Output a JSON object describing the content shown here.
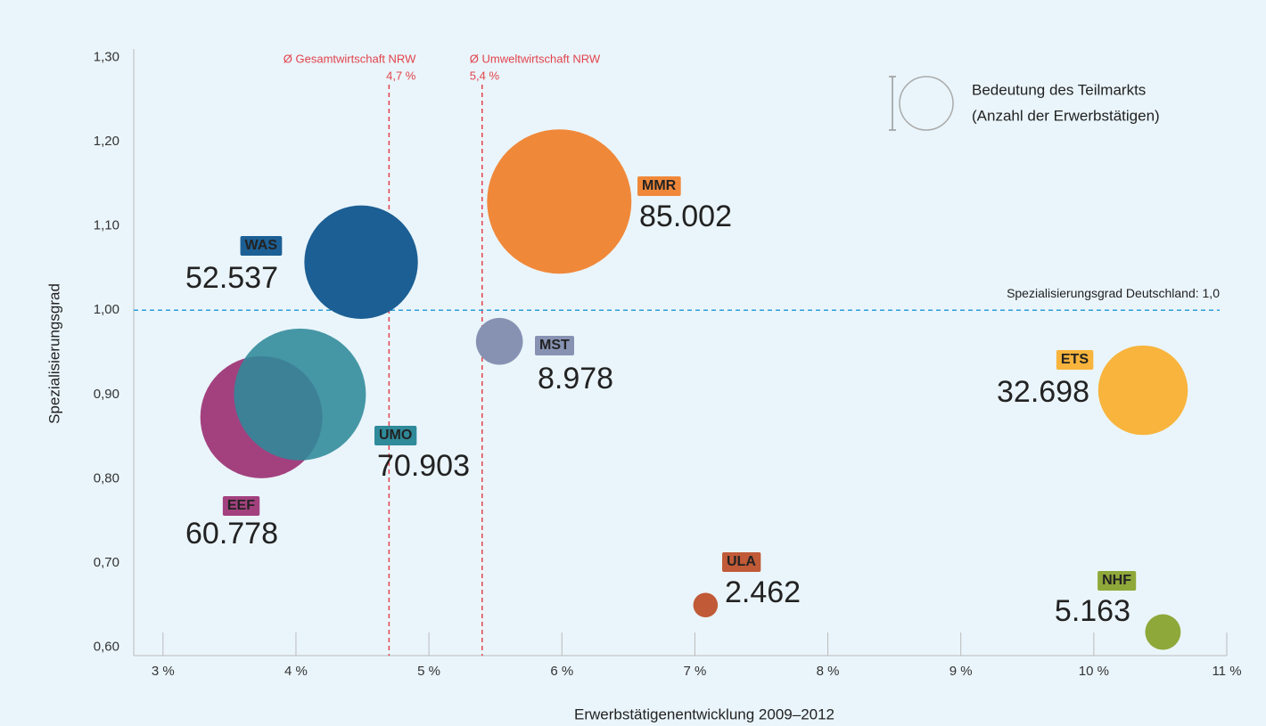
{
  "chart_data": {
    "type": "bubble",
    "x_label": "Erwerbstätigenentwicklung 2009–2012",
    "y_label": "Spezialisierungsgrad",
    "legend_title": [
      "Bedeutung des Teilmarkts",
      "(Anzahl der Erwerbstätigen)"
    ],
    "xlim": [
      2.78,
      11
    ],
    "ylim": [
      0.59,
      1.31
    ],
    "xticks": [
      {
        "value": 3,
        "label": "3 %"
      },
      {
        "value": 4,
        "label": "4 %"
      },
      {
        "value": 5,
        "label": "5 %"
      },
      {
        "value": 6,
        "label": "6 %"
      },
      {
        "value": 7,
        "label": "7 %"
      },
      {
        "value": 8,
        "label": "8 %"
      },
      {
        "value": 9,
        "label": "9 %"
      },
      {
        "value": 10,
        "label": "10 %"
      },
      {
        "value": 11,
        "label": "11 %"
      }
    ],
    "yticks": [
      {
        "value": 0.6,
        "label": "0,60"
      },
      {
        "value": 0.7,
        "label": "0,70"
      },
      {
        "value": 0.8,
        "label": "0,80"
      },
      {
        "value": 0.9,
        "label": "0,90"
      },
      {
        "value": 1.0,
        "label": "1,00"
      },
      {
        "value": 1.1,
        "label": "1,10"
      },
      {
        "value": 1.2,
        "label": "1,20"
      },
      {
        "value": 1.3,
        "label": "1,30"
      }
    ],
    "reference_lines": [
      {
        "axis": "x",
        "value": 4.7,
        "name": "Ø Gesamtwirtschaft NRW",
        "label": "4,7 %",
        "color": "#e2434b"
      },
      {
        "axis": "x",
        "value": 5.4,
        "name": "Ø Umweltwirtschaft NRW",
        "label": "5,4 %",
        "color": "#e2434b"
      },
      {
        "axis": "y",
        "value": 1.0,
        "label": "Spezialisierungsgrad Deutschland: 1,0",
        "color": "#2a9fd8"
      }
    ],
    "series": [
      {
        "name": "MMR",
        "color": "#f0883a",
        "x": [
          5.98
        ],
        "values": [
          1.129
        ],
        "sizes": [
          85002
        ],
        "size_labels": [
          "85.002"
        ]
      },
      {
        "name": "WAS",
        "color": "#1c5f94",
        "x": [
          4.49
        ],
        "values": [
          1.057
        ],
        "sizes": [
          52537
        ],
        "size_labels": [
          "52.537"
        ]
      },
      {
        "name": "EEF",
        "color": "#a3417f",
        "x": [
          3.74
        ],
        "values": [
          0.873
        ],
        "sizes": [
          60778
        ],
        "size_labels": [
          "60.778"
        ]
      },
      {
        "name": "UMO",
        "color": "#2f8a9a",
        "x": [
          4.03
        ],
        "values": [
          0.9
        ],
        "sizes": [
          70903
        ],
        "size_labels": [
          "70.903"
        ]
      },
      {
        "name": "MST",
        "color": "#8792b3",
        "x": [
          5.53
        ],
        "values": [
          0.963
        ],
        "sizes": [
          8978
        ],
        "size_labels": [
          "8.978"
        ]
      },
      {
        "name": "ETS",
        "color": "#f8b43c",
        "x": [
          10.37
        ],
        "values": [
          0.905
        ],
        "sizes": [
          32698
        ],
        "size_labels": [
          "32.698"
        ]
      },
      {
        "name": "ULA",
        "color": "#c05a37",
        "x": [
          7.08
        ],
        "values": [
          0.65
        ],
        "sizes": [
          2462
        ],
        "size_labels": [
          "2.462"
        ]
      },
      {
        "name": "NHF",
        "color": "#8fa83a",
        "x": [
          10.52
        ],
        "values": [
          0.618
        ],
        "sizes": [
          5163
        ],
        "size_labels": [
          "5.163"
        ]
      }
    ]
  }
}
